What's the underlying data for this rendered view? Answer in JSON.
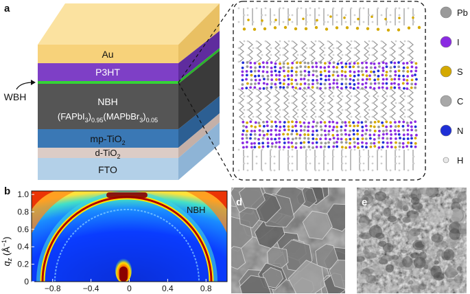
{
  "panel_a": {
    "letter": "a",
    "layers": {
      "au": "Au",
      "p3ht": "P3HT",
      "nbh": "NBH",
      "mp_tio2": "mp-TiO",
      "d_tio2": "d-TiO",
      "fto": "FTO"
    },
    "formula": {
      "fapbi": "(FAPbI",
      "sub1": "3",
      "sub2": "0.95",
      "mapbbr": "(MAPbBr",
      "sub3": "3",
      "sub4": "0.05"
    },
    "sub_2": "2",
    "wbh_label": "WBH",
    "legend": [
      {
        "label": "Pb",
        "color": "#9a9a9a"
      },
      {
        "label": "I",
        "color": "#8a2be2"
      },
      {
        "label": "S",
        "color": "#d4a900"
      },
      {
        "label": "C",
        "color": "#a8a8a8"
      },
      {
        "label": "N",
        "color": "#1f2fd6"
      },
      {
        "label": "H",
        "color": "#e8e8e8"
      }
    ],
    "colors": {
      "au": "#f7d27a",
      "p3ht": "#7e3fc6",
      "wbh": "#35d435",
      "nbh": "#555555",
      "mp_tio2": "#3a78b5",
      "d_tio2": "#d9c7c0",
      "fto": "#a9c9e4"
    }
  },
  "panel_b": {
    "letter": "b",
    "annotation": "NBH",
    "ylabel_q": "q",
    "ylabel_sub": "z",
    "ylabel_unit": "(Å",
    "ylabel_sup": "−1",
    "ylabel_close": ")",
    "yticks": [
      "0",
      "0.2",
      "0.4",
      "0.6",
      "0.8",
      "1.0"
    ],
    "xticks": [
      "−0.8",
      "−0.4",
      "0",
      "0.4",
      "0.8"
    ]
  },
  "panel_d": {
    "letter": "d"
  },
  "panel_e": {
    "letter": "e"
  }
}
